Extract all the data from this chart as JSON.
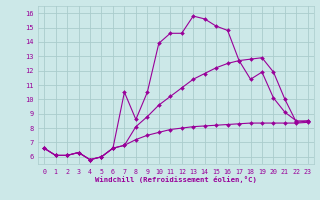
{
  "xlabel": "Windchill (Refroidissement éolien,°C)",
  "bg_color": "#cce8e8",
  "grid_color": "#aacccc",
  "line_color": "#990099",
  "xlim": [
    -0.5,
    23.5
  ],
  "ylim": [
    5.5,
    16.5
  ],
  "line1_x": [
    0,
    1,
    2,
    3,
    4,
    5,
    6,
    7,
    8,
    9,
    10,
    11,
    12,
    13,
    14,
    15,
    16,
    17,
    18,
    19,
    20,
    21,
    22,
    23
  ],
  "line1_y": [
    6.6,
    6.1,
    6.1,
    6.3,
    5.8,
    6.0,
    6.6,
    10.5,
    8.6,
    10.5,
    13.9,
    14.6,
    14.6,
    15.8,
    15.6,
    15.1,
    14.8,
    12.7,
    11.4,
    11.9,
    10.1,
    9.1,
    8.5,
    8.5
  ],
  "line2_x": [
    0,
    1,
    2,
    3,
    4,
    5,
    6,
    7,
    8,
    9,
    10,
    11,
    12,
    13,
    14,
    15,
    16,
    17,
    18,
    19,
    20,
    21,
    22,
    23
  ],
  "line2_y": [
    6.6,
    6.1,
    6.1,
    6.3,
    5.8,
    6.0,
    6.6,
    6.8,
    8.1,
    8.8,
    9.6,
    10.2,
    10.8,
    11.4,
    11.8,
    12.2,
    12.5,
    12.7,
    12.8,
    12.9,
    11.9,
    10.0,
    8.4,
    8.5
  ],
  "line3_x": [
    0,
    1,
    2,
    3,
    4,
    5,
    6,
    7,
    8,
    9,
    10,
    11,
    12,
    13,
    14,
    15,
    16,
    17,
    18,
    19,
    20,
    21,
    22,
    23
  ],
  "line3_y": [
    6.6,
    6.1,
    6.1,
    6.3,
    5.8,
    6.0,
    6.6,
    6.8,
    7.2,
    7.5,
    7.7,
    7.9,
    8.0,
    8.1,
    8.15,
    8.2,
    8.25,
    8.3,
    8.35,
    8.35,
    8.35,
    8.35,
    8.35,
    8.4
  ],
  "xtick_labels": [
    "0",
    "1",
    "2",
    "3",
    "4",
    "5",
    "6",
    "7",
    "8",
    "9",
    "10",
    "11",
    "12",
    "13",
    "14",
    "15",
    "16",
    "17",
    "18",
    "19",
    "20",
    "21",
    "22",
    "23"
  ],
  "ytick_labels": [
    "6",
    "7",
    "8",
    "9",
    "10",
    "11",
    "12",
    "13",
    "14",
    "15",
    "16"
  ],
  "markersize": 2.0
}
